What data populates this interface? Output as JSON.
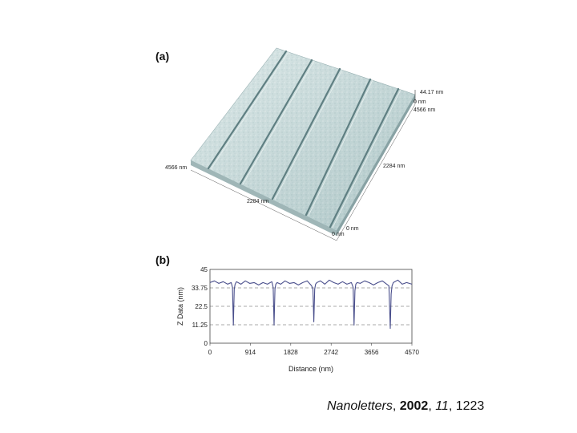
{
  "figure": {
    "panel_a": {
      "label": "(a)",
      "annotations": {
        "z_max": "44.17 nm",
        "z_min": "0 nm",
        "right_far": "4566 nm",
        "left_corner": "4566 nm",
        "right_edge": "2284 nm",
        "front_edge": "2284 nm",
        "origin_front": "0 nm",
        "origin_right": "0 nm"
      }
    },
    "panel_b": {
      "label": "(b)"
    }
  },
  "chart_data": {
    "type": "line",
    "title": "",
    "xlabel": "Distance (nm)",
    "ylabel": "Z Data (nm)",
    "xlim": [
      0,
      4570
    ],
    "ylim": [
      0,
      45
    ],
    "x_ticks": [
      "0",
      "914",
      "1828",
      "2742",
      "3656",
      "4570"
    ],
    "y_ticks": [
      "0",
      "11.25",
      "22.5",
      "33.75",
      "45"
    ],
    "grid": "dashed horizontal",
    "line_color": "#4a4f8c",
    "series": [
      {
        "x": [
          0,
          100,
          200,
          300,
          400,
          480,
          510,
          530,
          550,
          570,
          600,
          700,
          800,
          900,
          1000,
          1100,
          1200,
          1300,
          1400,
          1430,
          1450,
          1470,
          1490,
          1520,
          1600,
          1700,
          1800,
          1900,
          2000,
          2100,
          2200,
          2300,
          2330,
          2350,
          2370,
          2390,
          2420,
          2500,
          2600,
          2700,
          2800,
          2900,
          3000,
          3100,
          3200,
          3240,
          3260,
          3280,
          3300,
          3330,
          3400,
          3500,
          3600,
          3700,
          3800,
          3900,
          4000,
          4050,
          4080,
          4100,
          4120,
          4150,
          4250,
          4350,
          4450,
          4570
        ],
        "y": [
          37,
          38,
          36.5,
          37.5,
          36,
          37,
          34,
          11,
          33,
          36,
          37.5,
          36,
          38,
          36.5,
          37,
          35.5,
          37,
          36,
          37.5,
          34,
          11,
          33,
          36,
          37,
          36,
          38,
          36.5,
          37,
          35.5,
          37,
          38,
          35,
          33,
          13,
          33,
          36,
          37,
          38,
          36,
          38.5,
          37,
          36,
          37.5,
          36,
          37,
          34,
          11,
          32,
          36,
          37,
          36.5,
          38,
          37,
          35.5,
          37,
          38,
          36,
          35,
          9,
          30,
          35,
          37,
          38.5,
          36,
          37,
          36
        ]
      }
    ]
  },
  "citation": {
    "journal": "Nanoletters",
    "sep1": ", ",
    "year": "2002",
    "sep2": ", ",
    "volume": "11",
    "sep3": ", ",
    "page": "1223"
  }
}
